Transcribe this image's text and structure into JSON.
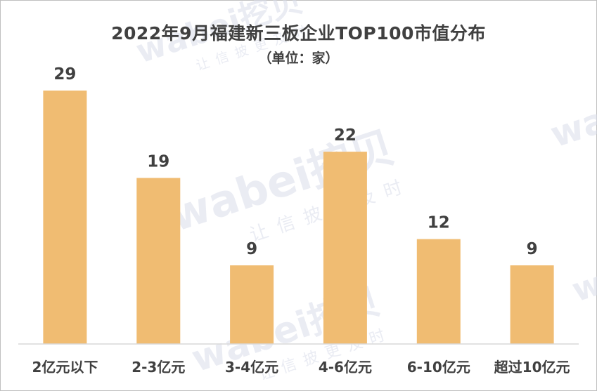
{
  "title": "2022年9月福建新三板企业TOP100市值分布",
  "subtitle": "（单位：家）",
  "watermark": {
    "brand": "wabei挖贝",
    "slogan": "让信披更及时"
  },
  "colors": {
    "bar": "#F0BC72",
    "text": "#404040",
    "axis": "#d9d9d9",
    "watermark": "#d9dcea"
  },
  "chart_data": {
    "type": "bar",
    "title": "2022年9月福建新三板企业TOP100市值分布",
    "subtitle": "（单位：家）",
    "categories": [
      "2亿元以下",
      "2-3亿元",
      "3-4亿元",
      "4-6亿元",
      "6-10亿元",
      "超过10亿元"
    ],
    "values": [
      29,
      19,
      9,
      22,
      12,
      9
    ],
    "xlabel": "",
    "ylabel": "",
    "ylim": [
      0,
      29
    ],
    "grid": false,
    "legend": "none",
    "data_labels": true
  }
}
